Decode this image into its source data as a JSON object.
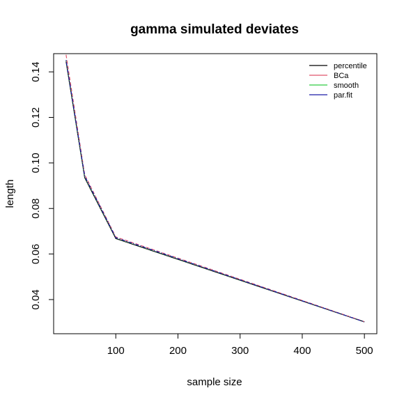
{
  "chart_data": {
    "type": "line",
    "title": "gamma simulated deviates",
    "xlabel": "sample size",
    "ylabel": "length",
    "xlim": [
      0,
      520
    ],
    "ylim": [
      0.025,
      0.148
    ],
    "xticks": [
      100,
      200,
      300,
      400,
      500
    ],
    "yticks": [
      0.04,
      0.06,
      0.08,
      0.1,
      0.12,
      0.14
    ],
    "ytick_labels": [
      "0.04",
      "0.06",
      "0.08",
      "0.10",
      "0.12",
      "0.14"
    ],
    "grid": false,
    "legend_position": "top-right",
    "x": [
      20,
      50,
      100,
      500
    ],
    "series": [
      {
        "name": "percentile",
        "color": "#000000",
        "dash": "solid",
        "values": [
          0.1445,
          0.0935,
          0.0668,
          0.0302
        ]
      },
      {
        "name": "BCa",
        "color": "#DF536B",
        "dash": "dashed",
        "values": [
          0.1475,
          0.0948,
          0.0675,
          0.0303
        ]
      },
      {
        "name": "smooth",
        "color": "#2ECC40",
        "dash": "dotted",
        "values": [
          0.145,
          0.0938,
          0.067,
          0.0302
        ]
      },
      {
        "name": "par.fit",
        "color": "#1a1aa6",
        "dash": "dotdash",
        "values": [
          0.1452,
          0.0942,
          0.0672,
          0.0302
        ]
      }
    ]
  }
}
